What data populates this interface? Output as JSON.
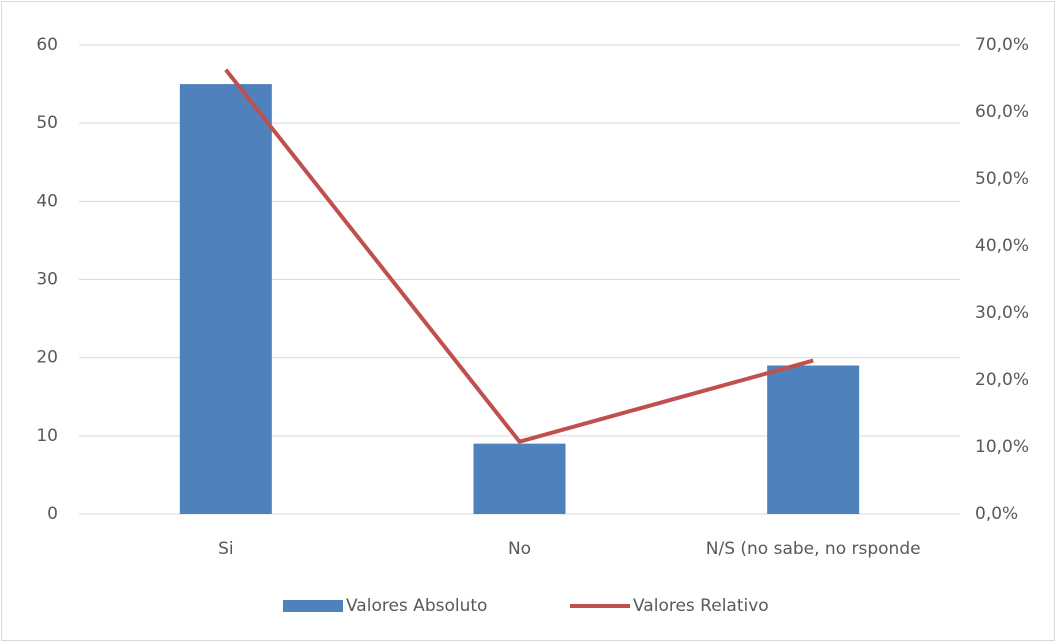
{
  "chart_data": {
    "type": "combo",
    "categories": [
      "Si",
      "No",
      "N/S (no sabe, no rsponde"
    ],
    "series": [
      {
        "name": "Valores Absoluto",
        "type": "bar",
        "color": "#4f81bd",
        "values": [
          55,
          9,
          19
        ]
      },
      {
        "name": "Valores Relativo",
        "type": "line",
        "axis": "y2",
        "color": "#c0504d",
        "values": [
          66.3,
          10.8,
          22.9
        ]
      }
    ],
    "ylim": [
      0,
      60
    ],
    "yticks": [
      0,
      10,
      20,
      30,
      40,
      50,
      60
    ],
    "y2lim": [
      0,
      70
    ],
    "y2ticks": [
      {
        "value": 0,
        "label": "0,0%"
      },
      {
        "value": 10,
        "label": "10,0%"
      },
      {
        "value": 20,
        "label": "20,0%"
      },
      {
        "value": 30,
        "label": "30,0%"
      },
      {
        "value": 40,
        "label": "40,0%"
      },
      {
        "value": 50,
        "label": "50,0%"
      },
      {
        "value": 60,
        "label": "60,0%"
      },
      {
        "value": 70,
        "label": "70,0%"
      }
    ],
    "grid": true,
    "legend": "bottom"
  }
}
